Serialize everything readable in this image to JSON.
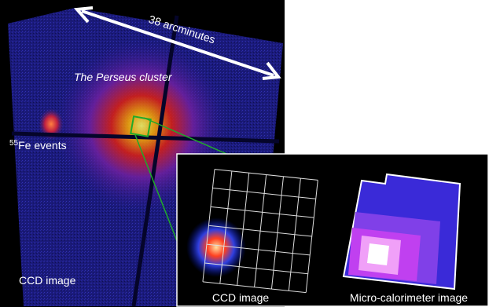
{
  "labels": {
    "scale": "38 arcminutes",
    "target": "The Perseus cluster",
    "calibration": {
      "isotope_mass": "55",
      "text": "Fe events"
    },
    "ccd_main": "CCD image"
  },
  "inset": {
    "ccd": "CCD image",
    "calorimeter": "Micro-calorimeter image"
  }
}
